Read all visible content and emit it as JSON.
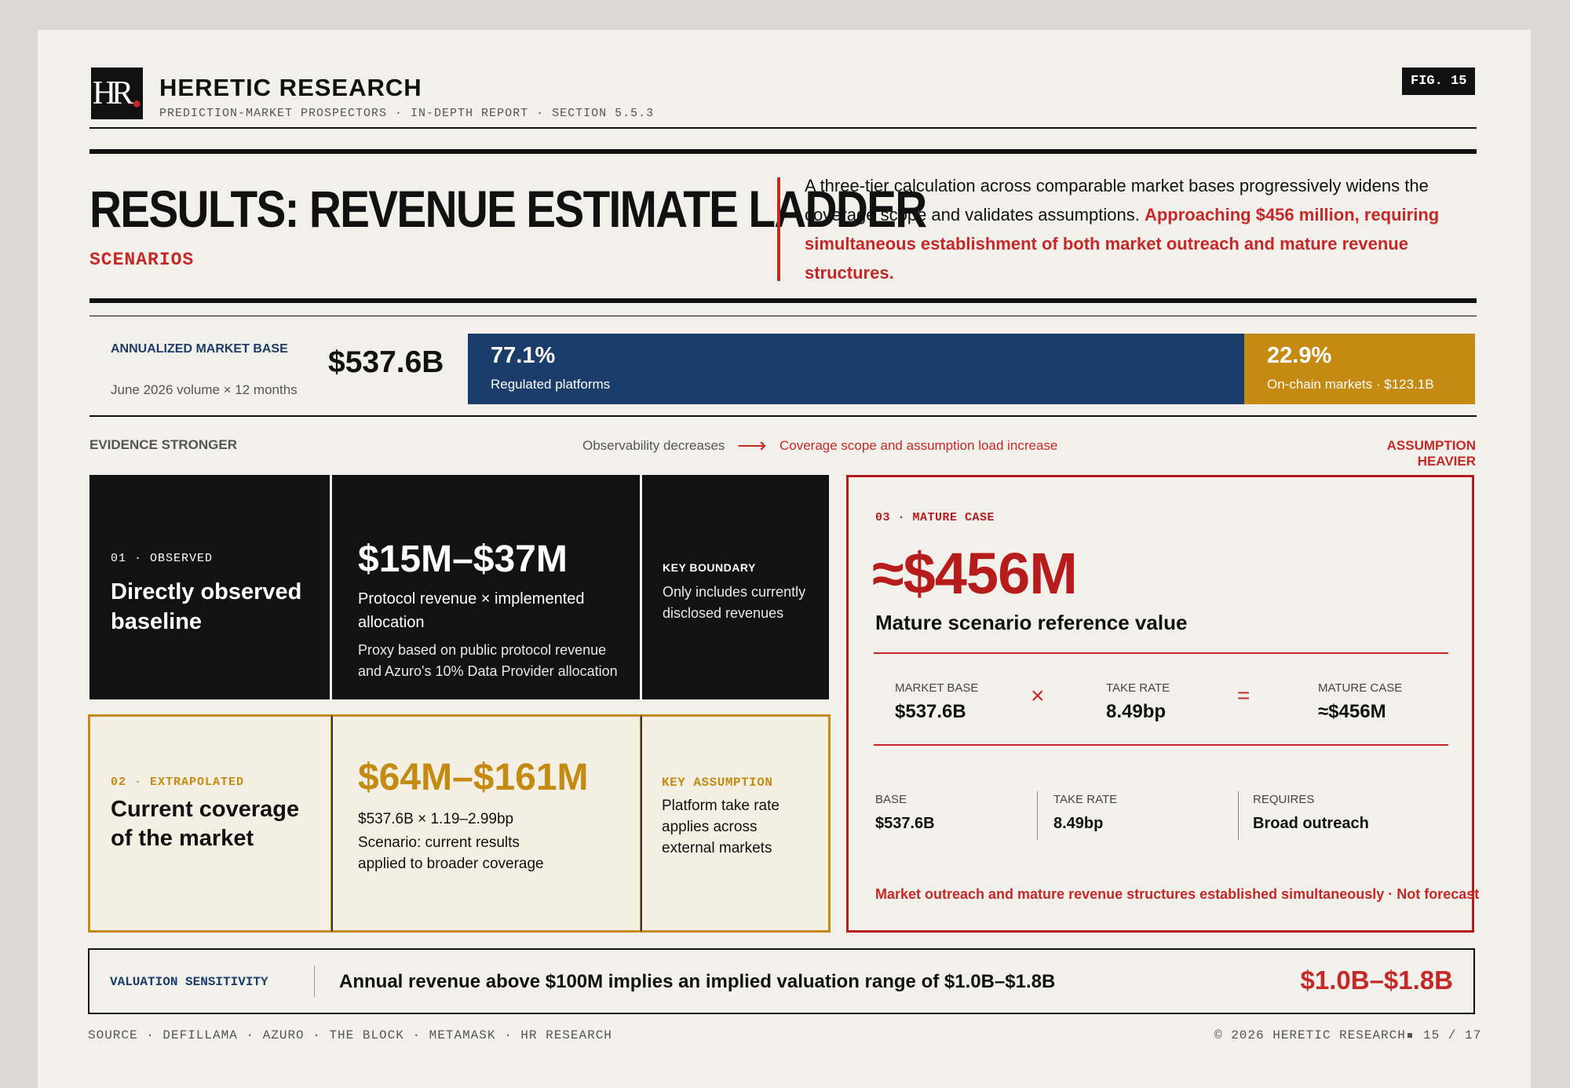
{
  "header": {
    "logo_text": "HR",
    "brand": "HERETIC RESEARCH",
    "subtitle": "PREDICTION-MARKET PROSPECTORS · IN-DEPTH REPORT · SECTION 5.5.3",
    "fig": "FIG. 15"
  },
  "title": {
    "main": "RESULTS: REVENUE ESTIMATE LADDER",
    "sub": "SCENARIOS",
    "lead_plain": "A three-tier calculation across comparable market bases progressively widens the coverage scope and validates assumptions.",
    "lead_highlight": "Approaching $456 million, requiring simultaneous establishment of both market outreach and mature revenue structures."
  },
  "market": {
    "label": "ANNUALIZED MARKET BASE",
    "sub": "June 2026 volume × 12 months",
    "total": "$537.6B",
    "segments": [
      {
        "pct_text": "77.1%",
        "label": "Regulated platforms",
        "share": 77.1,
        "color": "#1b3d6b"
      },
      {
        "pct_text": "22.9%",
        "label": "On-chain markets · $123.1B",
        "share": 22.9,
        "color": "#c58a12"
      }
    ]
  },
  "scale": {
    "left": "EVIDENCE STRONGER",
    "middle_1": "Observability decreases",
    "arrow": "⟶",
    "middle_2": "Coverage scope and assumption load increase",
    "right": "ASSUMPTION HEAVIER"
  },
  "tier1": {
    "tag": "01 · OBSERVED",
    "title": "Directly observed baseline",
    "value": "$15M–$37M",
    "formula": "Protocol revenue × implemented allocation",
    "note": "Proxy based on public protocol revenue and Azuro's 10% Data Provider allocation",
    "side_tag": "KEY BOUNDARY",
    "side_text": "Only includes currently disclosed revenues"
  },
  "tier2": {
    "tag": "02 · EXTRAPOLATED",
    "title": "Current coverage of the market",
    "value": "$64M–$161M",
    "formula": "$537.6B × 1.19–2.99bp",
    "note": "Scenario: current results applied to broader coverage",
    "side_tag": "KEY ASSUMPTION",
    "side_text": "Platform take rate applies across external markets"
  },
  "tier3": {
    "tag": "03 · MATURE CASE",
    "value": "≈$456M",
    "caption": "Mature scenario reference value",
    "equation": {
      "a_label": "MARKET BASE",
      "a_value": "$537.6B",
      "op1": "×",
      "b_label": "TAKE RATE",
      "b_value": "8.49bp",
      "op2": "=",
      "c_label": "MATURE CASE",
      "c_value": "≈$456M"
    },
    "facts": [
      {
        "label": "BASE",
        "value": "$537.6B"
      },
      {
        "label": "TAKE RATE",
        "value": "8.49bp"
      },
      {
        "label": "REQUIRES",
        "value": "Broad outreach"
      }
    ],
    "note": "Market outreach and mature revenue structures established simultaneously · Not forecast"
  },
  "sensitivity": {
    "label": "VALUATION SENSITIVITY",
    "text": "Annual revenue above $100M implies an implied valuation range of $1.0B–$1.8B",
    "value": "$1.0B–$1.8B"
  },
  "footer": {
    "source": "SOURCE · DEFILLAMA · AZURO · THE BLOCK · METAMASK · HR RESEARCH",
    "copyright": "© 2026 HERETIC RESEARCH",
    "page": "15 / 17"
  }
}
